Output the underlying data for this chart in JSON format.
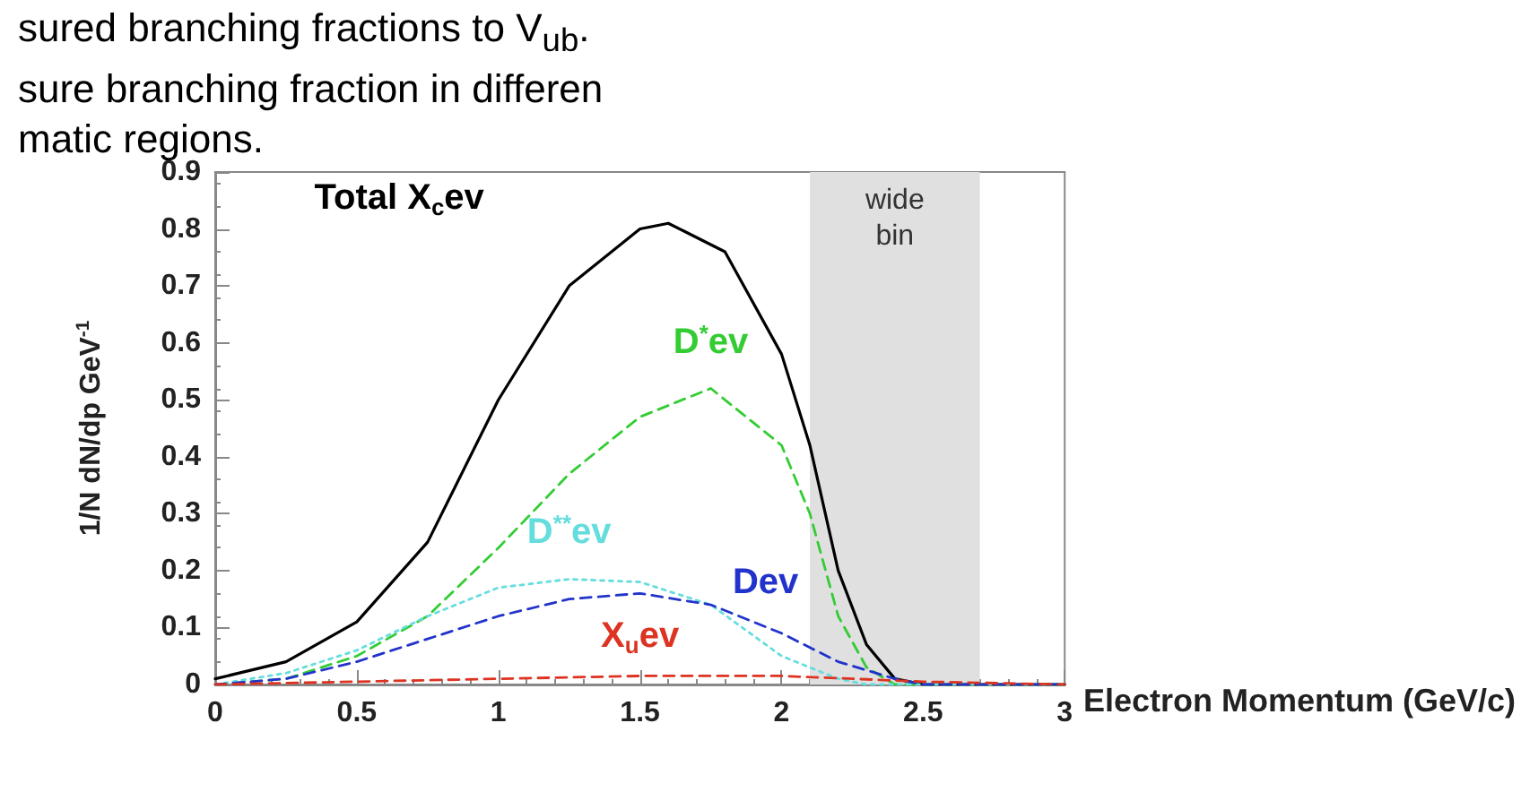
{
  "chart_data": {
    "type": "line",
    "annotations": [
      "sured branching fractions to V$_{ub}$.",
      "sure branching fraction in differen",
      "matic regions."
    ],
    "xlabel": "Electron Momentum (GeV/c)",
    "ylabel": "1/N dN/dp GeV$^{-1}$",
    "xlim": [
      0,
      3
    ],
    "xticks": [
      0,
      0.5,
      1,
      1.5,
      2,
      2.5,
      3
    ],
    "ylim": [
      0,
      0.9
    ],
    "yticks": [
      0,
      0.1,
      0.2,
      0.3,
      0.4,
      0.5,
      0.6,
      0.7,
      0.8,
      0.9
    ],
    "grid": false,
    "marker": "none",
    "bands": [
      {
        "axis": "x",
        "from": 2.1,
        "to": 2.7,
        "label": "wide bin",
        "color": "#e0e0e0"
      }
    ],
    "series": [
      {
        "name": "Total X$_{c}$ev",
        "color": "#000000",
        "line_style": "solid",
        "x": [
          0,
          0.25,
          0.5,
          0.75,
          1,
          1.25,
          1.5,
          1.6,
          1.8,
          2,
          2.1,
          2.2,
          2.3,
          2.4,
          2.5,
          3
        ],
        "values": [
          0.01,
          0.04,
          0.11,
          0.25,
          0.5,
          0.7,
          0.8,
          0.81,
          0.76,
          0.58,
          0.42,
          0.2,
          0.07,
          0.01,
          0,
          0
        ]
      },
      {
        "name": "D$^{*}$ev",
        "color": "#33cc33",
        "line_style": "dashed",
        "x": [
          0,
          0.25,
          0.5,
          0.75,
          1,
          1.25,
          1.5,
          1.75,
          2,
          2.1,
          2.2,
          2.3,
          2.4,
          3
        ],
        "values": [
          0,
          0.01,
          0.05,
          0.12,
          0.24,
          0.37,
          0.47,
          0.52,
          0.42,
          0.3,
          0.12,
          0.03,
          0,
          0
        ]
      },
      {
        "name": "D$^{**}$ev",
        "color": "#66dddd",
        "line_style": "dotted",
        "x": [
          0,
          0.25,
          0.5,
          0.75,
          1,
          1.25,
          1.5,
          1.75,
          2,
          2.2,
          2.3,
          3
        ],
        "values": [
          0,
          0.02,
          0.06,
          0.12,
          0.17,
          0.185,
          0.18,
          0.14,
          0.05,
          0.01,
          0,
          0
        ]
      },
      {
        "name": "Dev",
        "color": "#2233cc",
        "line_style": "dashed",
        "x": [
          0,
          0.25,
          0.5,
          0.75,
          1,
          1.25,
          1.5,
          1.75,
          2,
          2.2,
          2.4,
          2.5,
          3
        ],
        "values": [
          0,
          0.01,
          0.04,
          0.08,
          0.12,
          0.15,
          0.16,
          0.14,
          0.09,
          0.04,
          0.01,
          0,
          0
        ]
      },
      {
        "name": "X$_{u}$ev",
        "color": "#dd3322",
        "line_style": "dashed",
        "x": [
          0,
          0.5,
          1,
          1.5,
          2,
          2.5,
          3
        ],
        "values": [
          0,
          0.005,
          0.01,
          0.015,
          0.015,
          0.005,
          0
        ]
      }
    ]
  }
}
